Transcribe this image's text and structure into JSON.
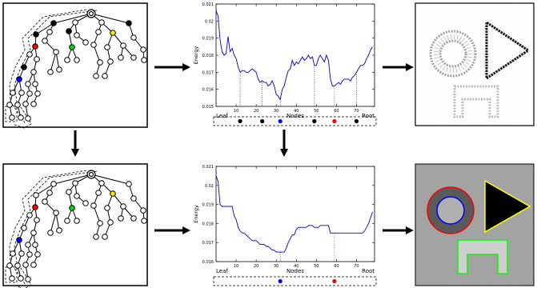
{
  "chart_data": [
    {
      "type": "line",
      "xlabel": "Nodes",
      "ylabel": "Energy",
      "xlim": [
        0,
        79
      ],
      "ylim": [
        0.015,
        0.021
      ],
      "xticks": [
        10,
        20,
        30,
        40,
        50,
        60,
        70
      ],
      "yticks": [
        0.015,
        0.016,
        0.017,
        0.018,
        0.019,
        0.02,
        0.021
      ],
      "ytick_labels": [
        "0.015",
        "0.016",
        "0.017",
        "0.018",
        "0.019",
        "0.02",
        "0.021"
      ],
      "axis_end_labels": {
        "left": "Leaf",
        "right": "Root"
      },
      "series": [
        {
          "x": [
            0,
            1,
            2,
            3,
            4,
            5,
            6,
            7,
            8,
            9,
            10,
            11,
            12,
            13,
            14,
            15,
            16,
            17,
            18,
            19,
            20,
            21,
            22,
            23,
            24,
            25,
            26,
            27,
            28,
            29,
            30,
            31,
            32,
            33,
            34,
            35,
            36,
            37,
            38,
            39,
            40,
            41,
            42,
            43,
            44,
            45,
            46,
            47,
            48,
            49,
            50,
            51,
            52,
            53,
            54,
            55,
            56,
            57,
            58,
            59,
            60,
            61,
            62,
            63,
            64,
            65,
            66,
            67,
            68,
            69,
            70,
            71,
            72,
            73,
            74,
            75,
            76,
            77,
            78
          ],
          "y": [
            0.0206,
            0.0203,
            0.0189,
            0.0182,
            0.018,
            0.0181,
            0.0191,
            0.0182,
            0.0184,
            0.018,
            0.0178,
            0.0173,
            0.017,
            0.0171,
            0.0171,
            0.017,
            0.017,
            0.0171,
            0.0172,
            0.0171,
            0.017,
            0.0166,
            0.0164,
            0.0165,
            0.0164,
            0.0164,
            0.0162,
            0.0163,
            0.0165,
            0.0162,
            0.0157,
            0.0156,
            0.0154,
            0.016,
            0.0162,
            0.0167,
            0.0171,
            0.0172,
            0.0177,
            0.0174,
            0.0176,
            0.0175,
            0.0177,
            0.0179,
            0.0177,
            0.0178,
            0.018,
            0.0178,
            0.0179,
            0.0174,
            0.0174,
            0.0178,
            0.018,
            0.0178,
            0.0176,
            0.018,
            0.0177,
            0.0166,
            0.0162,
            0.0162,
            0.0163,
            0.0164,
            0.0163,
            0.0165,
            0.0166,
            0.0166,
            0.0166,
            0.0165,
            0.0167,
            0.0168,
            0.017,
            0.0172,
            0.0174,
            0.0174,
            0.0175,
            0.0178,
            0.018,
            0.0183,
            0.0185
          ]
        }
      ],
      "markers": [
        {
          "x": 12,
          "color": "#000000"
        },
        {
          "x": 23,
          "color": "#000000"
        },
        {
          "x": 32,
          "color": "#0000ff"
        },
        {
          "x": 49,
          "color": "#000000"
        },
        {
          "x": 59,
          "color": "#ff0000"
        },
        {
          "x": 70,
          "color": "#000000"
        }
      ]
    },
    {
      "type": "line",
      "xlabel": "Nodes",
      "ylabel": "Energy",
      "xlim": [
        0,
        79
      ],
      "ylim": [
        0.016,
        0.021
      ],
      "xticks": [
        10,
        20,
        30,
        40,
        50,
        60,
        70
      ],
      "yticks": [
        0.016,
        0.017,
        0.018,
        0.019,
        0.02,
        0.021
      ],
      "ytick_labels": [
        "0.016",
        "0.017",
        "0.018",
        "0.019",
        "0.02",
        "0.021"
      ],
      "axis_end_labels": {
        "left": "Leaf",
        "right": "Root"
      },
      "series": [
        {
          "x": [
            0,
            1,
            2,
            3,
            4,
            5,
            6,
            7,
            8,
            9,
            10,
            11,
            12,
            13,
            14,
            15,
            16,
            17,
            18,
            19,
            20,
            21,
            22,
            23,
            24,
            25,
            26,
            27,
            28,
            29,
            30,
            31,
            32,
            33,
            34,
            35,
            36,
            37,
            38,
            39,
            40,
            41,
            42,
            43,
            44,
            45,
            46,
            47,
            48,
            49,
            50,
            51,
            52,
            53,
            54,
            55,
            56,
            57,
            58,
            59,
            60,
            61,
            62,
            63,
            64,
            65,
            66,
            67,
            68,
            69,
            70,
            71,
            72,
            73,
            74,
            75,
            76,
            77,
            78
          ],
          "y": [
            0.0205,
            0.0202,
            0.019,
            0.0189,
            0.0189,
            0.0189,
            0.0189,
            0.0189,
            0.0189,
            0.0184,
            0.0182,
            0.0178,
            0.0176,
            0.0175,
            0.0175,
            0.0174,
            0.0173,
            0.0172,
            0.0171,
            0.0171,
            0.0171,
            0.017,
            0.0169,
            0.0169,
            0.0169,
            0.0168,
            0.0168,
            0.0167,
            0.0166,
            0.0166,
            0.0165,
            0.0165,
            0.0165,
            0.0165,
            0.0165,
            0.0167,
            0.017,
            0.0172,
            0.0174,
            0.0174,
            0.0177,
            0.0178,
            0.0178,
            0.0178,
            0.0178,
            0.0178,
            0.0179,
            0.0179,
            0.0179,
            0.0178,
            0.0178,
            0.0178,
            0.0179,
            0.0179,
            0.0179,
            0.0179,
            0.0179,
            0.0175,
            0.0175,
            0.0175,
            0.0175,
            0.0175,
            0.0175,
            0.0175,
            0.0175,
            0.0175,
            0.0175,
            0.0175,
            0.0175,
            0.0175,
            0.0175,
            0.0175,
            0.0175,
            0.0175,
            0.0176,
            0.0178,
            0.018,
            0.0183,
            0.0186
          ]
        }
      ],
      "markers": [
        {
          "x": 32,
          "color": "#0000ff"
        },
        {
          "x": 59,
          "color": "#ff0000"
        }
      ]
    }
  ],
  "node_colors": {
    "black": "#000000",
    "red": "#ff0000",
    "green": "#00dd00",
    "yellow": "#ffee00",
    "blue": "#0000ff"
  },
  "trees": {
    "top_highlights": [
      {
        "node": "L1a",
        "color": "#000000"
      },
      {
        "node": "L1d",
        "color": "#000000"
      },
      {
        "node": "L2c",
        "color": "#000000"
      },
      {
        "node": "L2a",
        "color": "#000000"
      },
      {
        "node": "L3a",
        "color": "#ff0000"
      },
      {
        "node": "L3c",
        "color": "#00dd00"
      },
      {
        "node": "L2f",
        "color": "#ffee00"
      },
      {
        "node": "L5a",
        "color": "#000000"
      },
      {
        "node": "L6a",
        "color": "#0000ff"
      }
    ],
    "bottom_highlights": [
      {
        "node": "L3a",
        "color": "#ff0000"
      },
      {
        "node": "L3c",
        "color": "#00dd00"
      },
      {
        "node": "L2f",
        "color": "#ffee00"
      },
      {
        "node": "L6a",
        "color": "#0000ff"
      }
    ]
  },
  "result_images": {
    "top_background": "#ffffff",
    "bottom_background": "#9a9a9a",
    "contour_colors": {
      "outer_circle": "#ff0000",
      "inner_circle": "#0000ff",
      "triangle": "#ffff00",
      "arch": "#00ff00"
    }
  }
}
